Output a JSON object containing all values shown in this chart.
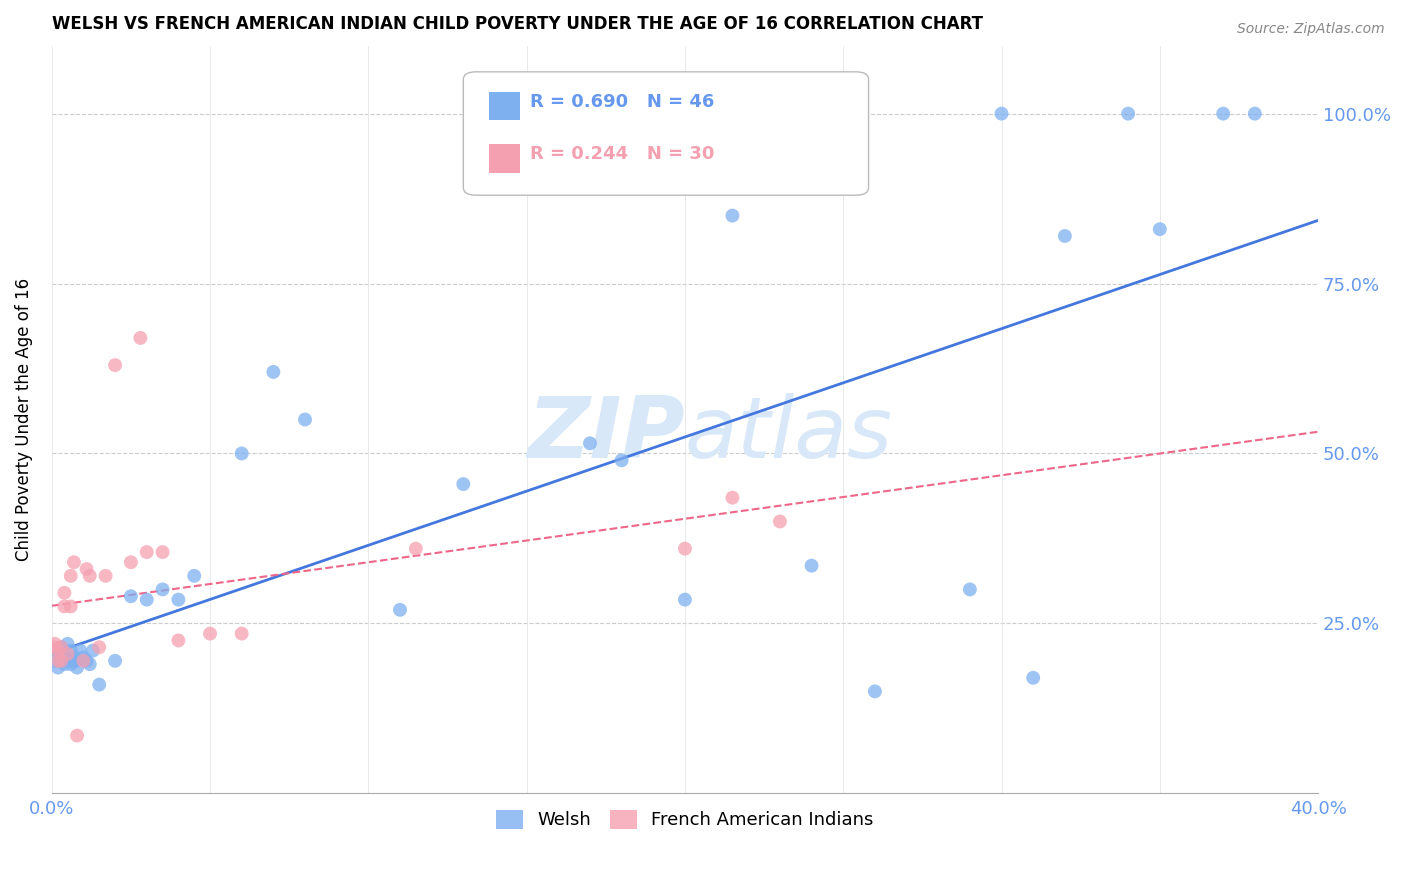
{
  "title": "WELSH VS FRENCH AMERICAN INDIAN CHILD POVERTY UNDER THE AGE OF 16 CORRELATION CHART",
  "source": "Source: ZipAtlas.com",
  "ylabel": "Child Poverty Under the Age of 16",
  "welsh_color": "#7EB0F0",
  "fai_color": "#F5A0B0",
  "welsh_line_color": "#4477DD",
  "fai_line_color": "#EE6688",
  "watermark_color": "#D8E8F8",
  "tick_color": "#6699EE",
  "xlim": [
    0.0,
    0.4
  ],
  "ylim": [
    0.0,
    1.1
  ],
  "welsh_x": [
    0.001,
    0.002,
    0.002,
    0.003,
    0.003,
    0.004,
    0.004,
    0.005,
    0.005,
    0.006,
    0.006,
    0.007,
    0.007,
    0.008,
    0.008,
    0.009,
    0.01,
    0.011,
    0.012,
    0.013,
    0.015,
    0.02,
    0.025,
    0.03,
    0.035,
    0.04,
    0.045,
    0.06,
    0.07,
    0.08,
    0.11,
    0.13,
    0.17,
    0.18,
    0.2,
    0.215,
    0.24,
    0.26,
    0.29,
    0.3,
    0.31,
    0.32,
    0.34,
    0.35,
    0.37,
    0.38
  ],
  "welsh_y": [
    0.195,
    0.185,
    0.21,
    0.2,
    0.215,
    0.19,
    0.2,
    0.195,
    0.22,
    0.19,
    0.21,
    0.195,
    0.2,
    0.185,
    0.195,
    0.21,
    0.2,
    0.195,
    0.19,
    0.21,
    0.16,
    0.195,
    0.29,
    0.285,
    0.3,
    0.285,
    0.32,
    0.5,
    0.62,
    0.55,
    0.27,
    0.455,
    0.515,
    0.49,
    0.285,
    0.85,
    0.335,
    0.15,
    0.3,
    1.0,
    0.17,
    0.82,
    1.0,
    0.83,
    1.0,
    1.0
  ],
  "fai_x": [
    0.001,
    0.001,
    0.002,
    0.002,
    0.003,
    0.003,
    0.004,
    0.004,
    0.005,
    0.006,
    0.006,
    0.007,
    0.008,
    0.01,
    0.011,
    0.012,
    0.015,
    0.017,
    0.02,
    0.025,
    0.028,
    0.03,
    0.035,
    0.04,
    0.05,
    0.06,
    0.115,
    0.2,
    0.215,
    0.23
  ],
  "fai_y": [
    0.22,
    0.215,
    0.21,
    0.195,
    0.215,
    0.195,
    0.275,
    0.295,
    0.205,
    0.32,
    0.275,
    0.34,
    0.085,
    0.195,
    0.33,
    0.32,
    0.215,
    0.32,
    0.63,
    0.34,
    0.67,
    0.355,
    0.355,
    0.225,
    0.235,
    0.235,
    0.36,
    0.36,
    0.435,
    0.4
  ]
}
